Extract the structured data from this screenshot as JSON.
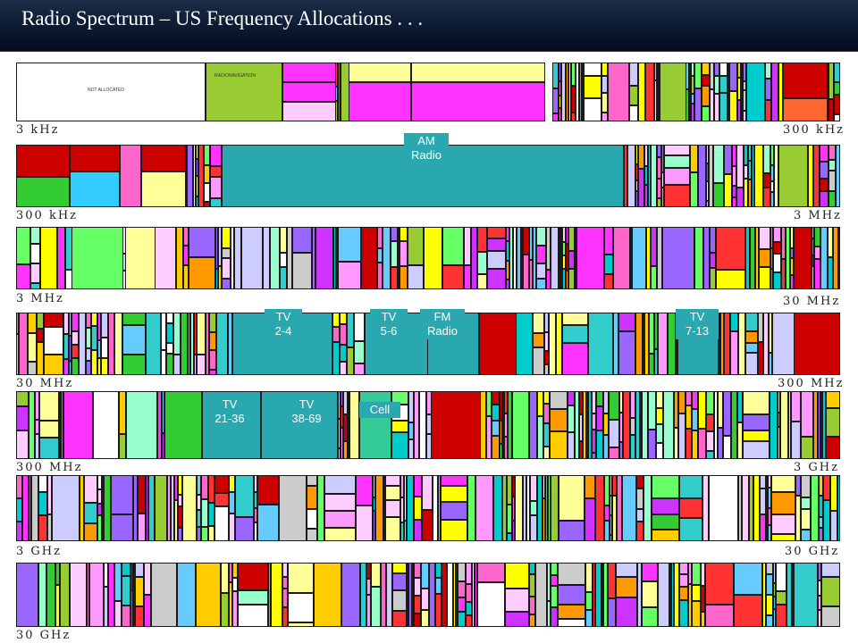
{
  "title": "Radio Spectrum – US Frequency Allocations . . .",
  "colors": {
    "title_bar": "#0f1d36",
    "broadcasting_band": "#2aa8b0"
  },
  "scale_labels": [
    "3 kHz",
    "300 kHz",
    "300 kHz",
    "3 MHz",
    "3 MHz",
    "30 MHz",
    "30 MHz",
    "300 MHz",
    "300 MHz",
    "3 GHz",
    "3 GHz",
    "30 GHz",
    "30 GHz"
  ],
  "rows": [
    {
      "id": "row-1"
    },
    {
      "id": "row-2"
    },
    {
      "id": "row-3"
    },
    {
      "id": "row-4"
    },
    {
      "id": "row-5"
    },
    {
      "id": "row-6"
    },
    {
      "id": "row-7"
    }
  ],
  "band_labels": {
    "am_radio": "AM\nRadio",
    "tv_2_4": "TV\n2-4",
    "tv_5_6": "TV\n5-6",
    "fm_radio": "FM\nRadio",
    "tv_7_13": "TV\n7-13",
    "tv_21_36": "TV\n21-36",
    "tv_38_69": "TV\n38-69",
    "cell": "Cell"
  },
  "allocation_text": {
    "not_allocated": "NOT ALLOCATED",
    "radionavigation": "RADIONAVIGATION"
  }
}
